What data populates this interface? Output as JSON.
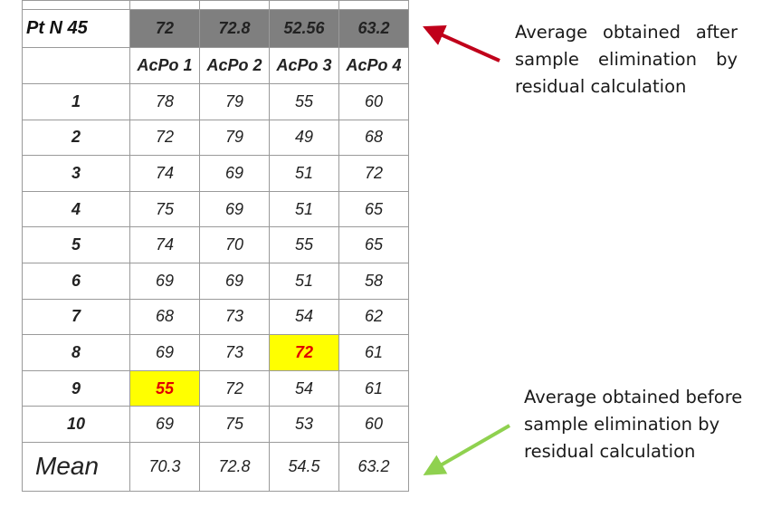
{
  "header": {
    "corner_label": "Pt N 45",
    "averages_after": [
      "72",
      "72.8",
      "52.56",
      "63.2"
    ]
  },
  "columns": [
    "AcPo 1",
    "AcPo 2",
    "AcPo 3",
    "AcPo 4"
  ],
  "rows": [
    {
      "n": "1",
      "values": [
        "78",
        "79",
        "55",
        "60"
      ]
    },
    {
      "n": "2",
      "values": [
        "72",
        "79",
        "49",
        "68"
      ]
    },
    {
      "n": "3",
      "values": [
        "74",
        "69",
        "51",
        "72"
      ]
    },
    {
      "n": "4",
      "values": [
        "75",
        "69",
        "51",
        "65"
      ]
    },
    {
      "n": "5",
      "values": [
        "74",
        "70",
        "55",
        "65"
      ]
    },
    {
      "n": "6",
      "values": [
        "69",
        "69",
        "51",
        "58"
      ]
    },
    {
      "n": "7",
      "values": [
        "68",
        "73",
        "54",
        "62"
      ]
    },
    {
      "n": "8",
      "values": [
        "69",
        "73",
        "72",
        "61"
      ]
    },
    {
      "n": "9",
      "values": [
        "55",
        "72",
        "54",
        "61"
      ]
    },
    {
      "n": "10",
      "values": [
        "69",
        "75",
        "53",
        "60"
      ]
    }
  ],
  "mean": {
    "label": "Mean",
    "values": [
      "70.3",
      "72.8",
      "54.5",
      "63.2"
    ]
  },
  "notes": {
    "top": "Average obtained after sample elimination by residual calculation",
    "bottom": "Average obtained before sample elimination by residual calculation"
  },
  "colors": {
    "header_bg": "#7f7f7f",
    "header_text": "#35a9e8",
    "highlight_bg": "#ffff00",
    "highlight_text": "#e00000",
    "arrow_top": "#c0001a",
    "arrow_bottom": "#8fd14f"
  }
}
